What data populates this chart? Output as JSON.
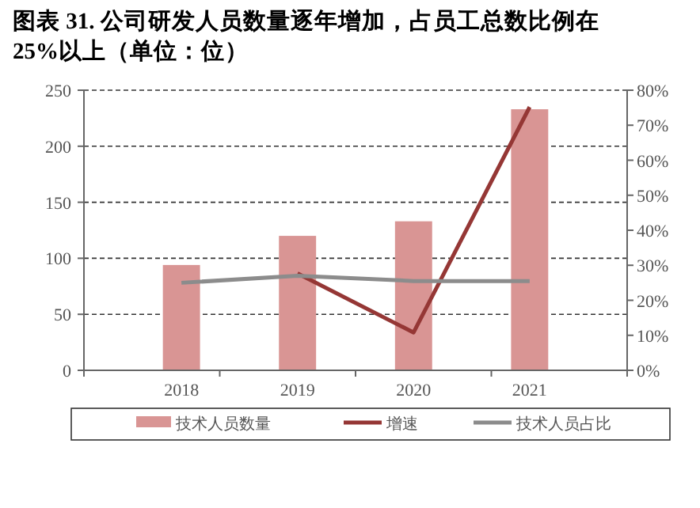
{
  "chart_data": {
    "type": "bar",
    "title": "图表 31. 公司研发人员数量逐年增加，占员工总数比例在25%以上（单位：位）",
    "categories": [
      "2018",
      "2019",
      "2020",
      "2021"
    ],
    "series": [
      {
        "name": "技术人员数量",
        "color": "#d99594",
        "values": [
          94,
          120,
          133,
          233
        ]
      },
      {
        "name": "增速",
        "type": "line",
        "axis": "y2",
        "color": "#953735",
        "values": [
          null,
          27.7,
          10.8,
          75.2
        ]
      },
      {
        "name": "技术人员占比",
        "type": "line",
        "axis": "y2",
        "color": "#8c8c8c",
        "values": [
          25,
          27,
          25.5,
          25.5
        ]
      }
    ],
    "ylim": [
      0,
      250
    ],
    "yticks": [
      0,
      50,
      100,
      150,
      200,
      250
    ],
    "y2lim": [
      0,
      80
    ],
    "y2ticks": [
      {
        "value": 0,
        "label": "0%"
      },
      {
        "value": 10,
        "label": "10%"
      },
      {
        "value": 20,
        "label": "20%"
      },
      {
        "value": 30,
        "label": "30%"
      },
      {
        "value": 40,
        "label": "40%"
      },
      {
        "value": 50,
        "label": "50%"
      },
      {
        "value": 60,
        "label": "60%"
      },
      {
        "value": 70,
        "label": "70%"
      },
      {
        "value": 80,
        "label": "80%"
      }
    ],
    "grid": "y",
    "legend": "bottom",
    "line_style": "solid",
    "marker": "none"
  }
}
